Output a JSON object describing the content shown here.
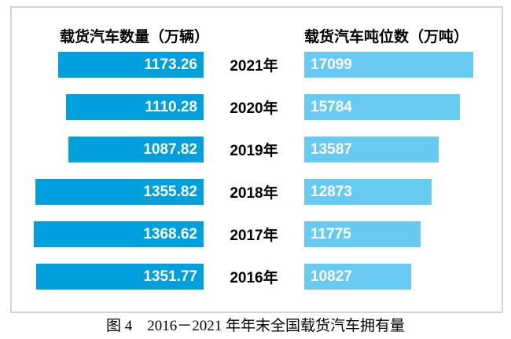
{
  "figure": {
    "caption": "图 4　2016－2021 年年末全国载货汽车拥有量"
  },
  "chart_data": {
    "type": "bar",
    "variant": "horizontal-mirrored-tornado",
    "title": "图 4　2016－2021 年年末全国载货汽车拥有量",
    "categories": [
      "2021年",
      "2020年",
      "2019年",
      "2018年",
      "2017年",
      "2016年"
    ],
    "series": [
      {
        "name": "载货汽车数量（万辆）",
        "side": "left",
        "color": "#00A0DC",
        "values": [
          1173.26,
          1110.28,
          1087.82,
          1355.82,
          1368.62,
          1351.77
        ],
        "value_format": "2dp",
        "axis_max": 1368.62
      },
      {
        "name": "载货汽车吨位数（万吨）",
        "side": "right",
        "color": "#67CBF1",
        "values": [
          17099,
          15784,
          13587,
          12873,
          11775,
          10827
        ],
        "value_format": "int",
        "axis_max": 17099
      }
    ],
    "grid": false,
    "legend_position": "column-headers-top",
    "value_labels": "inside-bar",
    "value_label_color": "#FFFFFF",
    "category_label_color": "#000000",
    "frame_border_color": "#D2D2D2"
  }
}
